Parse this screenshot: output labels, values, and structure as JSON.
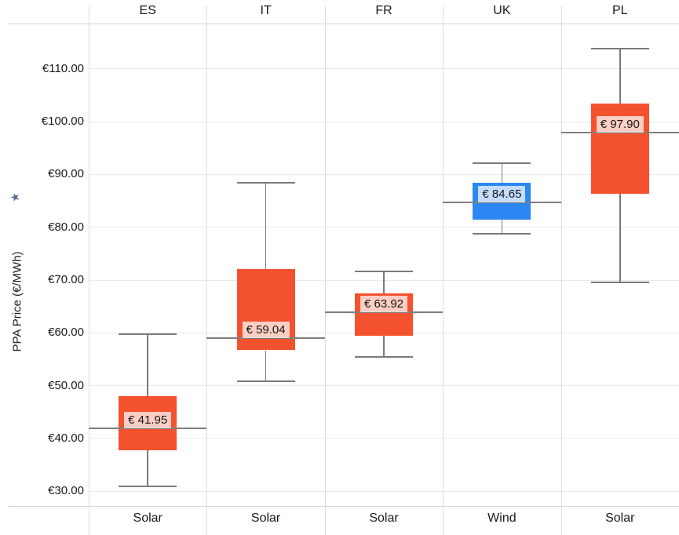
{
  "chart_data": {
    "type": "boxplot",
    "title": "",
    "ylabel": "PPA Price (€/MWh)",
    "pin_glyph": "★",
    "grid": true,
    "ylim": [
      27.2,
      118.6
    ],
    "yticks": [
      {
        "value": 30,
        "label": "€30.00"
      },
      {
        "value": 40,
        "label": "€40.00"
      },
      {
        "value": 50,
        "label": "€50.00"
      },
      {
        "value": 60,
        "label": "€60.00"
      },
      {
        "value": 70,
        "label": "€70.00"
      },
      {
        "value": 80,
        "label": "€80.00"
      },
      {
        "value": 90,
        "label": "€90.00"
      },
      {
        "value": 100,
        "label": "€100.00"
      },
      {
        "value": 110,
        "label": "€110.00"
      }
    ],
    "colors": {
      "solar_box": "#f4512e",
      "wind_box": "#2c87f2",
      "median_line": "#7e7e7e",
      "whisker": "#7a7a7a",
      "gridline": "#eaeaea",
      "column_separator": "#dcdcdc",
      "pin_icon": "#5a6b8e"
    },
    "columns": [
      {
        "country": "ES",
        "category": "Solar",
        "min": 30.9,
        "q1": 37.8,
        "median": 41.95,
        "q3": 48.0,
        "max": 59.7,
        "median_label": "€ 41.95",
        "color": "#f4512e"
      },
      {
        "country": "IT",
        "category": "Solar",
        "min": 50.8,
        "q1": 56.7,
        "median": 59.04,
        "q3": 72.1,
        "max": 88.4,
        "median_label": "€ 59.04",
        "color": "#f4512e"
      },
      {
        "country": "FR",
        "category": "Solar",
        "min": 55.4,
        "q1": 59.5,
        "median": 63.92,
        "q3": 67.5,
        "max": 71.6,
        "median_label": "€ 63.92",
        "color": "#f4512e"
      },
      {
        "country": "UK",
        "category": "Wind",
        "min": 78.8,
        "q1": 81.4,
        "median": 84.65,
        "q3": 88.5,
        "max": 92.1,
        "median_label": "€ 84.65",
        "color": "#2c87f2"
      },
      {
        "country": "PL",
        "category": "Solar",
        "min": 69.6,
        "q1": 86.3,
        "median": 97.9,
        "q3": 103.5,
        "max": 113.9,
        "median_label": "€ 97.90",
        "color": "#f4512e"
      }
    ]
  }
}
